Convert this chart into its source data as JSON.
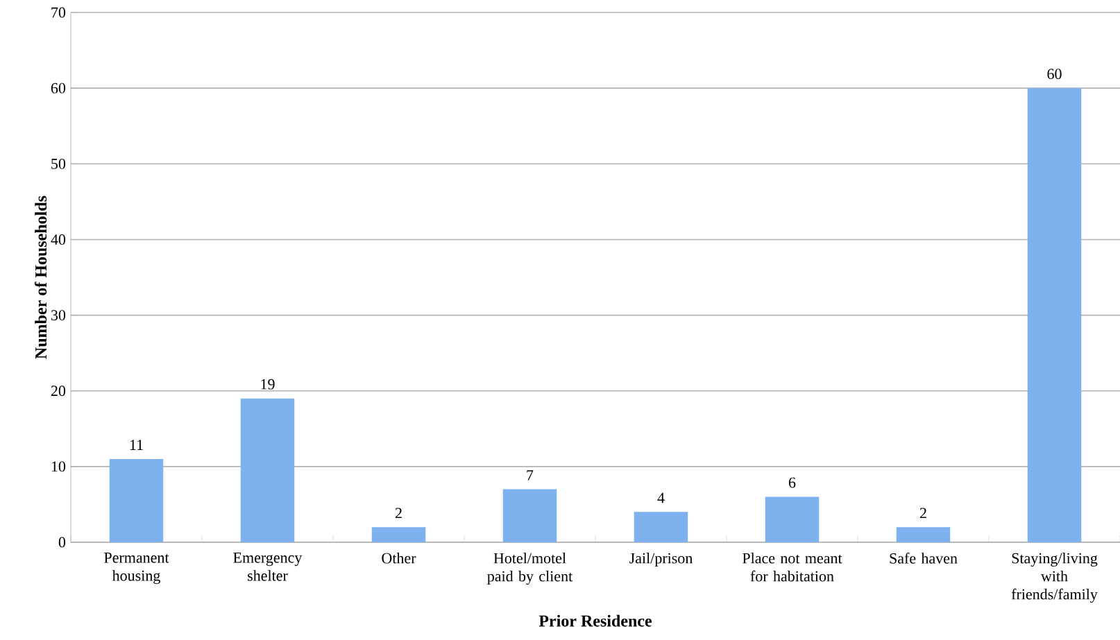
{
  "chart_data": {
    "type": "bar",
    "xlabel": "Prior Residence",
    "ylabel": "Number of Households",
    "categories": [
      "Permanent housing",
      "Emergency shelter",
      "Other",
      "Hotel/motel paid by client",
      "Jail/prison",
      "Place not meant for habitation",
      "Safe haven",
      "Staying/living with friends/family"
    ],
    "values": [
      11,
      19,
      2,
      7,
      4,
      6,
      2,
      60
    ],
    "color": "#7db2ef",
    "ylim": [
      0,
      70
    ],
    "yticks": [
      0,
      10,
      20,
      30,
      40,
      50,
      60,
      70
    ],
    "grid": "y",
    "data_labels": true
  }
}
